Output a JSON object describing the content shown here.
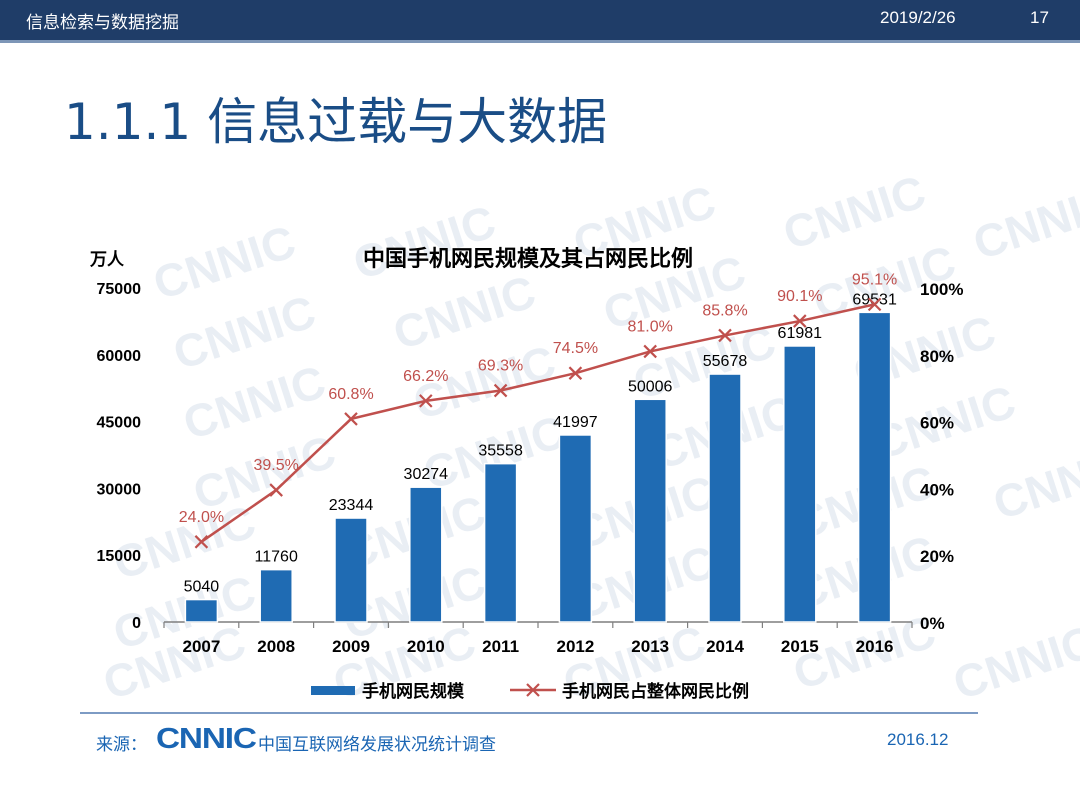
{
  "header": {
    "course": "信息检索与数据挖掘",
    "date": "2019/2/26",
    "page": "17"
  },
  "slide_title": "1.1.1 信息过载与大数据",
  "watermark_text": "CNNIC",
  "chart_data": {
    "type": "bar",
    "title": "中国手机网民规模及其占网民比例",
    "y_unit": "万人",
    "categories": [
      "2007",
      "2008",
      "2009",
      "2010",
      "2011",
      "2012",
      "2013",
      "2014",
      "2015",
      "2016"
    ],
    "series": [
      {
        "name": "手机网民规模",
        "type": "bar",
        "axis": "left",
        "values": [
          5040,
          11760,
          23344,
          30274,
          35558,
          41997,
          50006,
          55678,
          61981,
          69531
        ],
        "labels": [
          "5040",
          "11760",
          "23344",
          "30274",
          "35558",
          "41997",
          "50006",
          "55678",
          "61981",
          "69531"
        ],
        "color": "#1f6bb3"
      },
      {
        "name": "手机网民占整体网民比例",
        "type": "line",
        "axis": "right",
        "values": [
          24.0,
          39.5,
          60.8,
          66.2,
          69.3,
          74.5,
          81.0,
          85.8,
          90.1,
          95.1
        ],
        "labels": [
          "24.0%",
          "39.5%",
          "60.8%",
          "66.2%",
          "69.3%",
          "74.5%",
          "81.0%",
          "85.8%",
          "90.1%",
          "95.1%"
        ],
        "color": "#c0504d"
      }
    ],
    "y_left": {
      "range": [
        0,
        75000
      ],
      "ticks": [
        "0",
        "15000",
        "30000",
        "45000",
        "60000",
        "75000"
      ]
    },
    "y_right": {
      "range": [
        0,
        100
      ],
      "ticks": [
        "0%",
        "20%",
        "40%",
        "60%",
        "80%",
        "100%"
      ]
    },
    "legend_position": "bottom"
  },
  "footer": {
    "source_prefix": "来源：",
    "source_logo": "CNNIC",
    "source_name": "中国互联网络发展状况统计调查",
    "date": "2016.12"
  }
}
